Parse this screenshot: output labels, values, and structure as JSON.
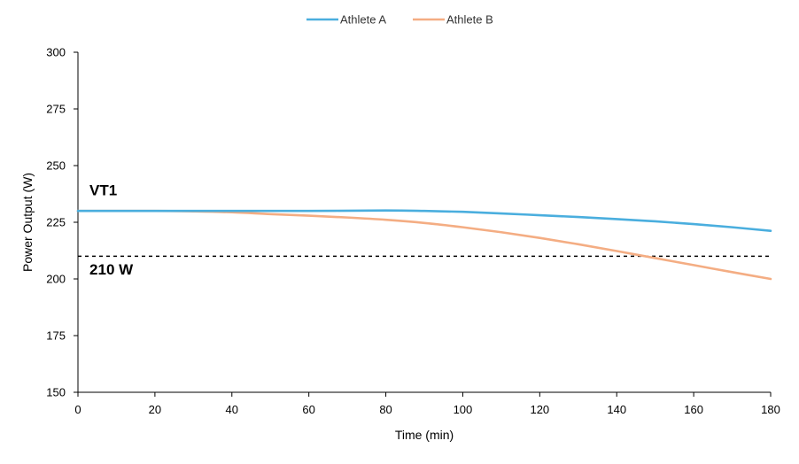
{
  "chart_data": {
    "type": "line",
    "title": "",
    "xlabel": "Time (min)",
    "ylabel": "Power Output (W)",
    "xlim": [
      0,
      180
    ],
    "ylim": [
      150,
      300
    ],
    "x_ticks": [
      0,
      20,
      40,
      60,
      80,
      100,
      120,
      140,
      160,
      180
    ],
    "y_ticks": [
      150,
      175,
      200,
      225,
      250,
      275,
      300
    ],
    "grid": false,
    "legend_position": "top-center",
    "series": [
      {
        "name": "Athlete A",
        "color": "#4aaede",
        "x": [
          0,
          20,
          40,
          60,
          80,
          90,
          100,
          110,
          120,
          130,
          140,
          150,
          160,
          170,
          180
        ],
        "y": [
          230,
          230,
          230,
          230,
          230.2,
          230,
          229.6,
          228.9,
          228.1,
          227.3,
          226.4,
          225.4,
          224.2,
          222.8,
          221.2
        ]
      },
      {
        "name": "Athlete B",
        "color": "#f4ad83",
        "x": [
          0,
          20,
          30,
          40,
          50,
          60,
          70,
          80,
          90,
          100,
          110,
          120,
          130,
          140,
          150,
          160,
          170,
          180
        ],
        "y": [
          230,
          230,
          229.8,
          229.4,
          228.6,
          227.9,
          227.1,
          226.1,
          224.7,
          222.8,
          220.6,
          218.1,
          215.3,
          212.3,
          209.2,
          206.1,
          203,
          200
        ]
      }
    ],
    "reference_line": {
      "y": 210,
      "style": "dashed",
      "color": "#000000"
    },
    "annotations": [
      {
        "text": "VT1",
        "x": 3,
        "y": 237
      },
      {
        "text": "210 W",
        "x": 3,
        "y": 202
      }
    ]
  }
}
